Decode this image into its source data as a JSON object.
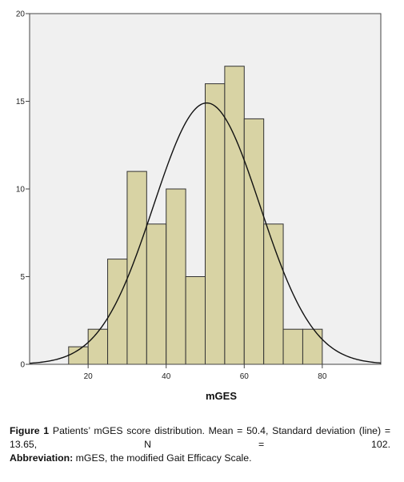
{
  "chart_data": {
    "type": "bar",
    "subtype": "histogram",
    "xlabel": "mGES",
    "ylabel": "",
    "xlim": [
      5,
      95
    ],
    "ylim": [
      0,
      20
    ],
    "x_ticks": [
      20,
      40,
      60,
      80
    ],
    "y_ticks": [
      0,
      5,
      10,
      15,
      20
    ],
    "bin_width": 5,
    "bins": [
      {
        "start": 15,
        "end": 20,
        "count": 1
      },
      {
        "start": 20,
        "end": 25,
        "count": 2
      },
      {
        "start": 25,
        "end": 30,
        "count": 6
      },
      {
        "start": 30,
        "end": 35,
        "count": 11
      },
      {
        "start": 35,
        "end": 40,
        "count": 8
      },
      {
        "start": 40,
        "end": 45,
        "count": 10
      },
      {
        "start": 45,
        "end": 50,
        "count": 5
      },
      {
        "start": 50,
        "end": 55,
        "count": 16
      },
      {
        "start": 55,
        "end": 60,
        "count": 17
      },
      {
        "start": 60,
        "end": 65,
        "count": 14
      },
      {
        "start": 65,
        "end": 70,
        "count": 8
      },
      {
        "start": 70,
        "end": 75,
        "count": 2
      },
      {
        "start": 75,
        "end": 80,
        "count": 2
      }
    ],
    "normal_curve": {
      "mean": 50.4,
      "sd": 13.65,
      "n": 102
    },
    "grid": false,
    "colors": {
      "plot_background": "#f0f0f0",
      "bar_fill": "#d8d3a4",
      "bar_stroke": "#333333",
      "curve": "#111111"
    }
  },
  "caption": {
    "figure_label": "Figure 1",
    "figure_text": " Patients’ mGES score distribution. Mean = 50.4, Standard deviation (line) = 13.65, N = 102.",
    "abbrev_label": "Abbreviation:",
    "abbrev_text": " mGES, the modified Gait Efficacy Scale."
  }
}
